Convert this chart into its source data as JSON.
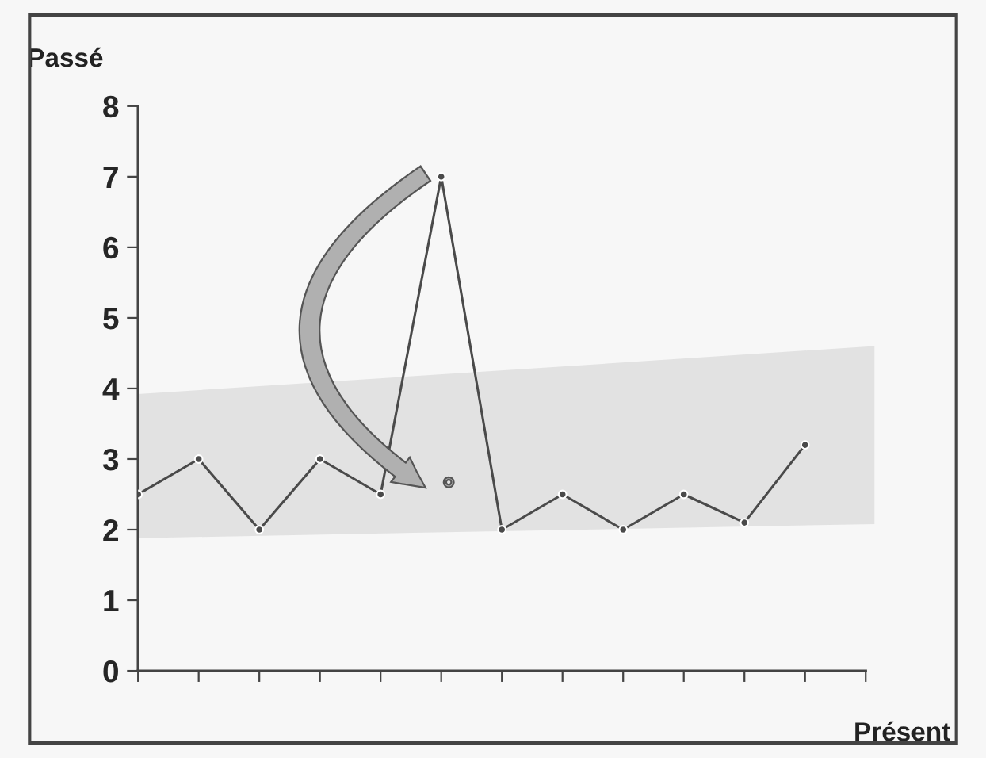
{
  "chart_data": {
    "type": "line",
    "xlabel": "Présent",
    "ylabel": "Passé",
    "categories": [
      null,
      null,
      null,
      null,
      null,
      null,
      null,
      null,
      null,
      null,
      null,
      null
    ],
    "series": [
      {
        "color": "#4a4a4a",
        "values": [
          2.5,
          3,
          2,
          3,
          2.5,
          7,
          2,
          2.5,
          2,
          2.5,
          2.1,
          3.2
        ]
      }
    ],
    "ylim": [
      0,
      8
    ],
    "yticks": [
      0,
      1,
      2,
      3,
      4,
      5,
      6,
      7,
      8
    ],
    "tick_labels": "y",
    "grid": false,
    "legend": false,
    "marker": "circle",
    "line_style": "solid"
  }
}
